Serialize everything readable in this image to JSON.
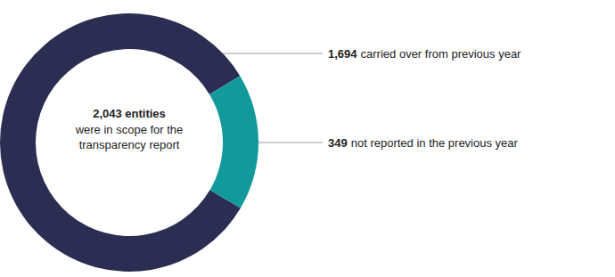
{
  "chart_data": {
    "type": "donut",
    "categories": [
      "carried over from previous year",
      "not reported in the previous year"
    ],
    "values": [
      1694,
      349
    ],
    "value_labels": [
      "1,694",
      "349"
    ],
    "colors": [
      "#2b2e52",
      "#12999c"
    ],
    "data_labels": true,
    "annotation": {
      "title": "2,043 entities",
      "text": "were in scope for the transparency report"
    }
  }
}
